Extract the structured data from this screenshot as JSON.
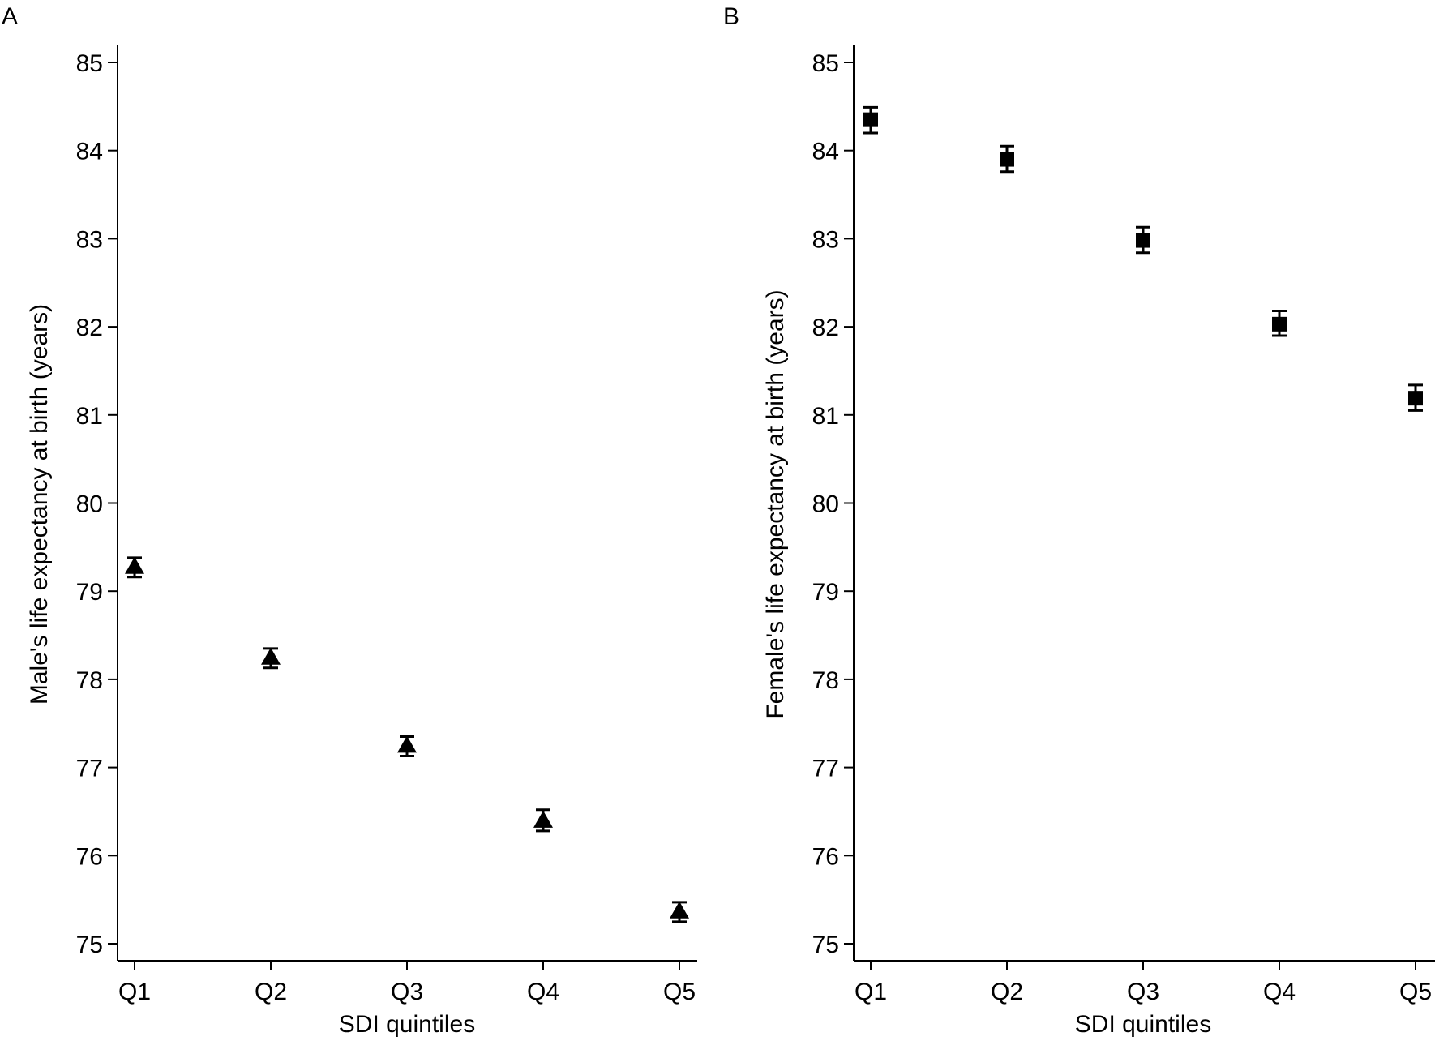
{
  "chart_data": [
    {
      "type": "scatter",
      "panel_label": "A",
      "title": "",
      "xlabel": "SDI quintiles",
      "ylabel": "Male's life expectancy at birth (years)",
      "categories": [
        "Q1",
        "Q2",
        "Q3",
        "Q4",
        "Q5"
      ],
      "ylim": [
        75,
        85
      ],
      "yticks": [
        "75",
        "76",
        "77",
        "78",
        "79",
        "80",
        "81",
        "82",
        "83",
        "84",
        "85"
      ],
      "marker": "triangle",
      "color": "#000000",
      "grid": false,
      "series": [
        {
          "values": [
            79.28,
            78.25,
            77.25,
            76.4,
            75.37
          ],
          "lower": [
            79.16,
            78.13,
            77.13,
            76.28,
            75.25
          ],
          "upper": [
            79.38,
            78.35,
            77.35,
            76.52,
            75.47
          ]
        }
      ]
    },
    {
      "type": "scatter",
      "panel_label": "B",
      "title": "",
      "xlabel": "SDI quintiles",
      "ylabel": "Female's life expectancy at birth (years)",
      "categories": [
        "Q1",
        "Q2",
        "Q3",
        "Q4",
        "Q5"
      ],
      "ylim": [
        75,
        85
      ],
      "yticks": [
        "75",
        "76",
        "77",
        "78",
        "79",
        "80",
        "81",
        "82",
        "83",
        "84",
        "85"
      ],
      "marker": "square",
      "color": "#000000",
      "grid": false,
      "series": [
        {
          "values": [
            84.35,
            83.9,
            82.98,
            82.03,
            81.19
          ],
          "lower": [
            84.2,
            83.76,
            82.84,
            81.9,
            81.05
          ],
          "upper": [
            84.49,
            84.05,
            83.13,
            82.18,
            81.34
          ]
        }
      ]
    }
  ]
}
